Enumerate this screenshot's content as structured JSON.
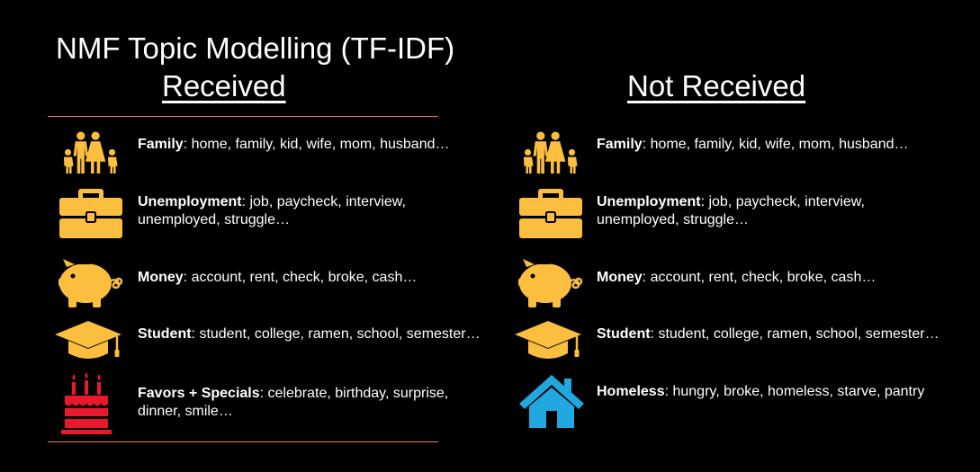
{
  "title": "NMF Topic Modelling (TF-IDF)",
  "colors": {
    "icon_gold": "#fbbe3f",
    "cake_red": "#e8192c",
    "home_blue": "#22a8e0",
    "rule": "#f27a3a"
  },
  "received": {
    "heading": "Received",
    "topics": [
      {
        "icon": "family-icon",
        "label": "Family",
        "line1": ": home, family, kid, wife, mom, husband…",
        "line2": ""
      },
      {
        "icon": "briefcase-icon",
        "label": "Unemployment",
        "line1": ": job, paycheck, interview,",
        "line2": "unemployed, struggle…"
      },
      {
        "icon": "piggy-bank-icon",
        "label": "Money",
        "line1": ": account, rent, check, broke, cash…",
        "line2": ""
      },
      {
        "icon": "graduation-cap-icon",
        "label": "Student",
        "line1": ": student, college, ramen, school, semester…",
        "line2": ""
      },
      {
        "icon": "birthday-cake-icon",
        "label": "Favors + Specials",
        "line1": ": celebrate, birthday, surprise,",
        "line2": "dinner, smile…"
      }
    ]
  },
  "not_received": {
    "heading": "Not Received",
    "topics": [
      {
        "icon": "family-icon",
        "label": "Family",
        "line1": ": home, family, kid, wife, mom, husband…",
        "line2": ""
      },
      {
        "icon": "briefcase-icon",
        "label": "Unemployment",
        "line1": ": job, paycheck, interview,",
        "line2": "unemployed, struggle…"
      },
      {
        "icon": "piggy-bank-icon",
        "label": "Money",
        "line1": ": account, rent, check, broke, cash…",
        "line2": ""
      },
      {
        "icon": "graduation-cap-icon",
        "label": "Student",
        "line1": ": student, college, ramen, school, semester…",
        "line2": ""
      },
      {
        "icon": "house-icon",
        "label": "Homeless",
        "line1": ": hungry, broke, homeless, starve, pantry",
        "line2": ""
      }
    ]
  }
}
